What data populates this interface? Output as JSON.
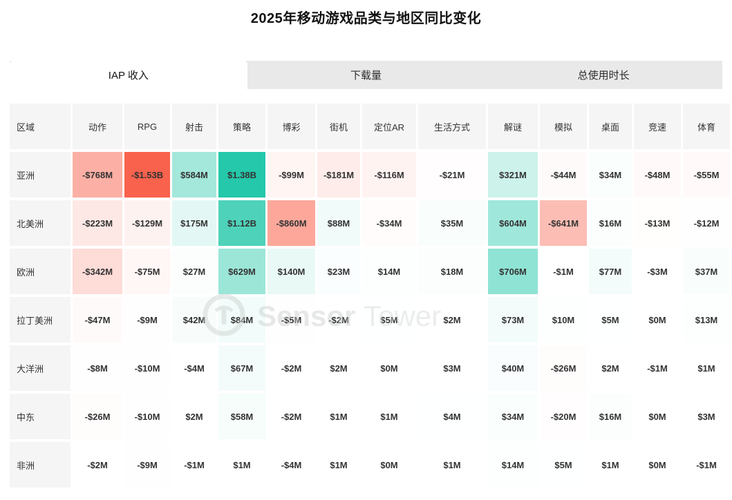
{
  "title": "2025年移动游戏品类与地区同比变化",
  "tabs": [
    {
      "label": "IAP 收入",
      "active": true
    },
    {
      "label": "下载量",
      "active": false
    },
    {
      "label": "总使用时长",
      "active": false
    }
  ],
  "watermark": {
    "logo_icon": "sensor-tower-circle-logo",
    "brand_bold": "Sensor",
    "brand_light": "Tower"
  },
  "chart_data": {
    "type": "heatmap",
    "title": "2025年移动游戏品类与地区同比变化",
    "active_metric": "IAP 收入",
    "row_header": "区域",
    "columns": [
      "动作",
      "RPG",
      "射击",
      "策略",
      "博彩",
      "街机",
      "定位AR",
      "生活方式",
      "解谜",
      "模拟",
      "桌面",
      "竞速",
      "体育"
    ],
    "rows": [
      {
        "region": "亚洲",
        "labels": [
          "-$768M",
          "-$1.53B",
          "$584M",
          "$1.38B",
          "-$99M",
          "-$181M",
          "-$116M",
          "-$21M",
          "$321M",
          "-$44M",
          "$34M",
          "-$48M",
          "-$55M"
        ],
        "values_musd": [
          -768,
          -1530,
          584,
          1380,
          -99,
          -181,
          -116,
          -21,
          321,
          -44,
          34,
          -48,
          -55
        ]
      },
      {
        "region": "北美洲",
        "labels": [
          "-$223M",
          "-$129M",
          "$175M",
          "$1.12B",
          "-$860M",
          "$88M",
          "-$34M",
          "$35M",
          "$604M",
          "-$641M",
          "$16M",
          "-$13M",
          "-$12M"
        ],
        "values_musd": [
          -223,
          -129,
          175,
          1120,
          -860,
          88,
          -34,
          35,
          604,
          -641,
          16,
          -13,
          -12
        ]
      },
      {
        "region": "欧洲",
        "labels": [
          "-$342M",
          "-$75M",
          "$27M",
          "$629M",
          "$140M",
          "$23M",
          "$14M",
          "$18M",
          "$706M",
          "-$1M",
          "$77M",
          "-$3M",
          "$37M"
        ],
        "values_musd": [
          -342,
          -75,
          27,
          629,
          140,
          23,
          14,
          18,
          706,
          -1,
          77,
          -3,
          37
        ]
      },
      {
        "region": "拉丁美洲",
        "labels": [
          "-$47M",
          "-$9M",
          "$42M",
          "$84M",
          "-$5M",
          "-$2M",
          "$5M",
          "$2M",
          "$73M",
          "$10M",
          "$5M",
          "$0M",
          "$13M"
        ],
        "values_musd": [
          -47,
          -9,
          42,
          84,
          -5,
          -2,
          5,
          2,
          73,
          10,
          5,
          0,
          13
        ]
      },
      {
        "region": "大洋洲",
        "labels": [
          "-$8M",
          "-$10M",
          "-$4M",
          "$67M",
          "-$2M",
          "$2M",
          "$0M",
          "$3M",
          "$40M",
          "-$26M",
          "$2M",
          "-$1M",
          "$1M"
        ],
        "values_musd": [
          -8,
          -10,
          -4,
          67,
          -2,
          2,
          0,
          3,
          40,
          -26,
          2,
          -1,
          1
        ]
      },
      {
        "region": "中东",
        "labels": [
          "-$26M",
          "-$10M",
          "$2M",
          "$58M",
          "-$2M",
          "$1M",
          "$1M",
          "$4M",
          "$34M",
          "-$20M",
          "$16M",
          "$0M",
          "$3M"
        ],
        "values_musd": [
          -26,
          -10,
          2,
          58,
          -2,
          1,
          1,
          4,
          34,
          -20,
          16,
          0,
          3
        ]
      },
      {
        "region": "非洲",
        "labels": [
          "-$2M",
          "-$9M",
          "-$1M",
          "$1M",
          "-$4M",
          "$1M",
          "$0M",
          "$1M",
          "$14M",
          "$5M",
          "$1M",
          "$0M",
          "-$1M"
        ],
        "values_musd": [
          -2,
          -9,
          -1,
          1,
          -4,
          1,
          0,
          1,
          14,
          5,
          1,
          0,
          -1
        ]
      }
    ],
    "color_scale": {
      "positive_max": "#0dc2a1",
      "negative_max": "#f9624c",
      "neutral": "#ffffff",
      "domain_abs_musd": 1530,
      "header_bg": "#f5f5f5",
      "tab_bar_bg": "#e9e9e9"
    }
  }
}
